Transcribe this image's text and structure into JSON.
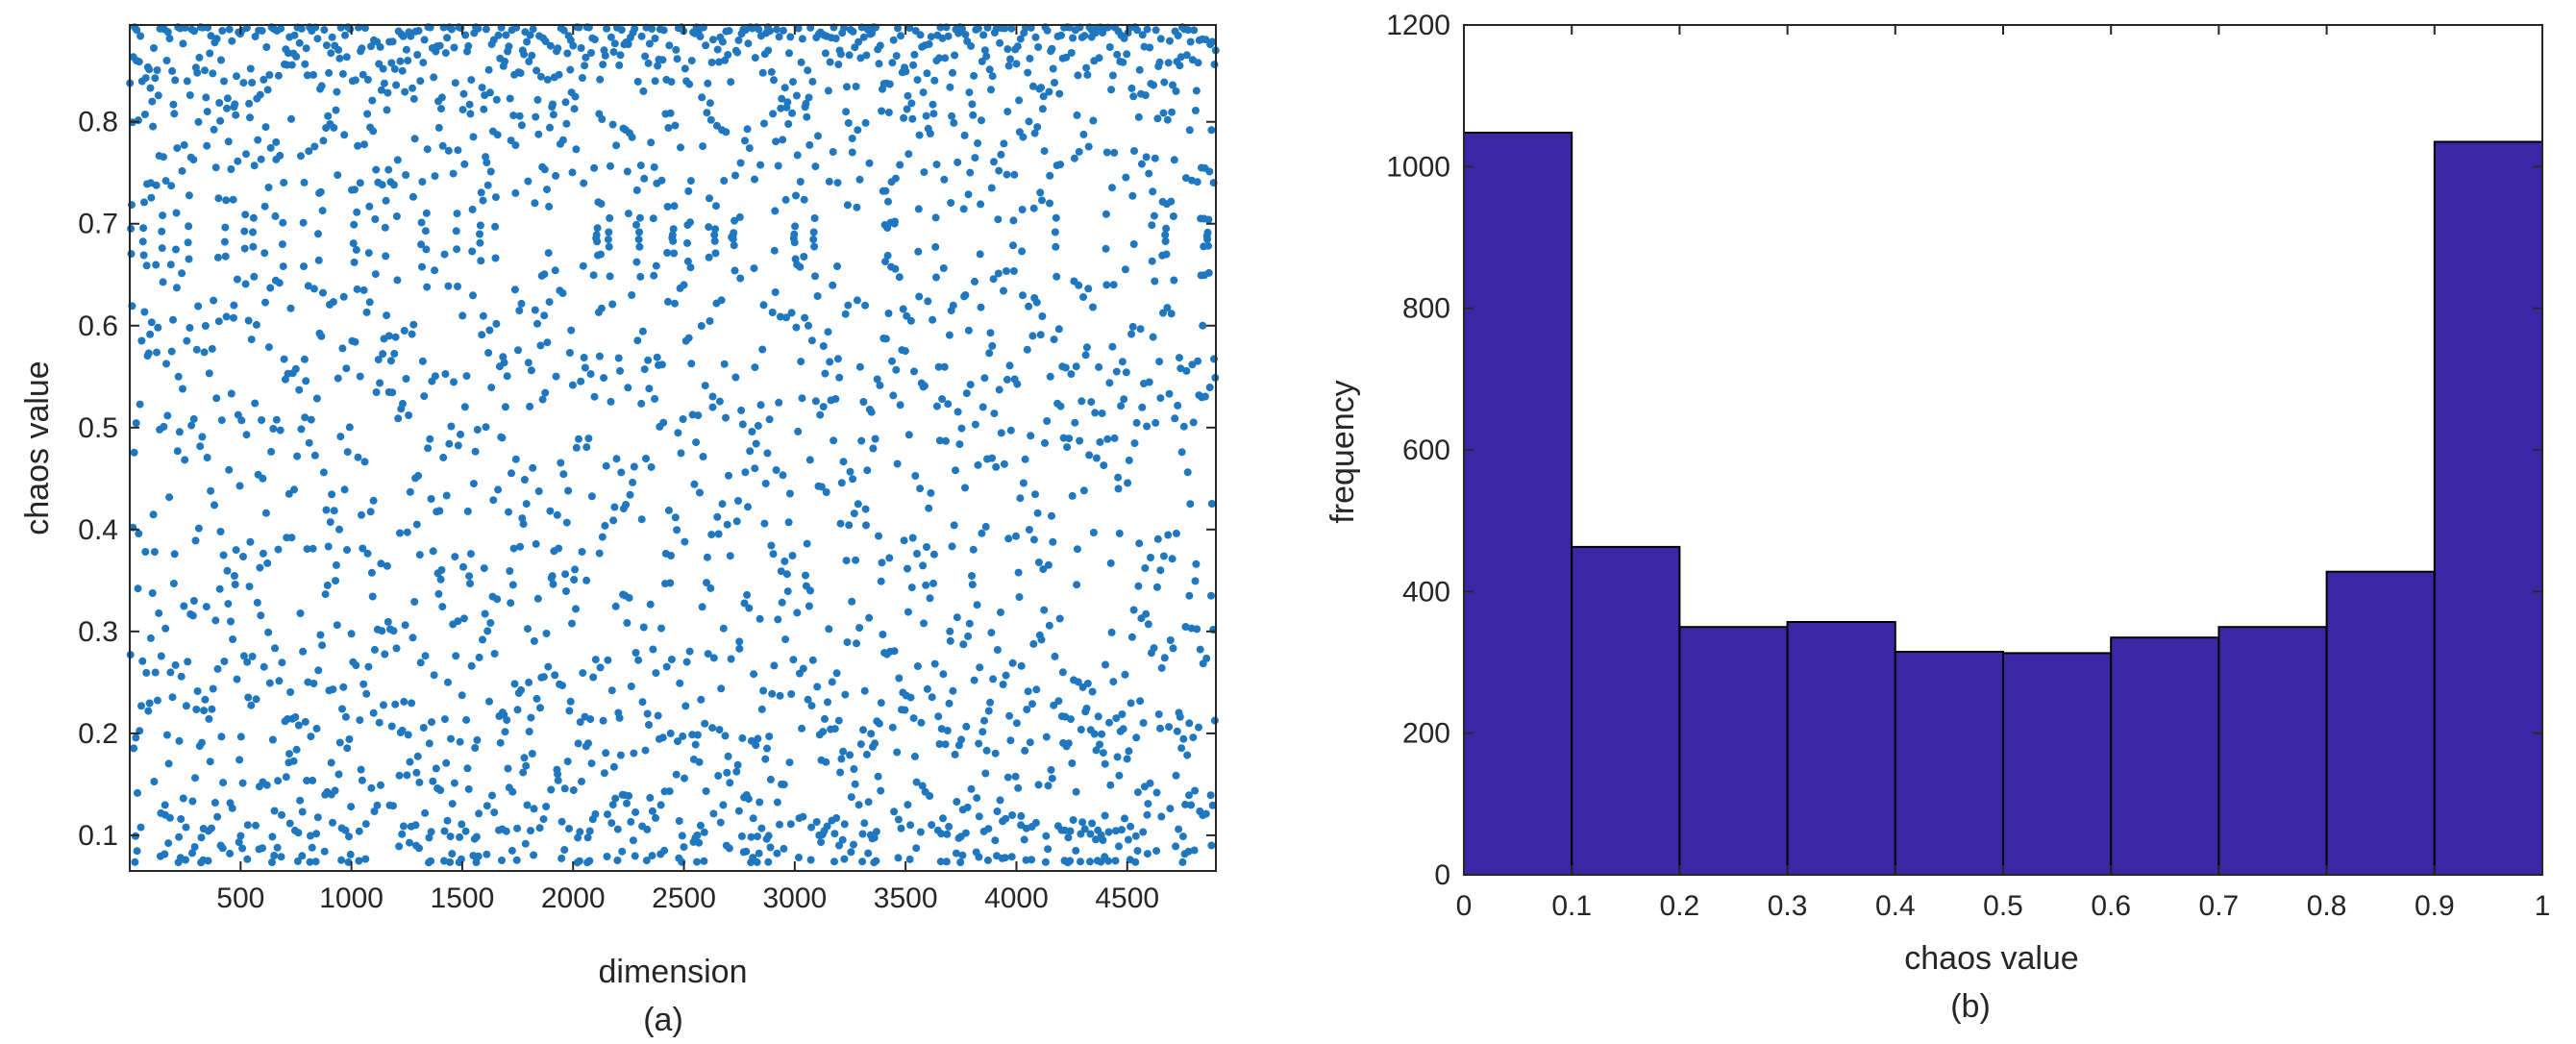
{
  "colors": {
    "scatter_point": "#1f77c0",
    "bar_fill": "#3b26a6",
    "axis": "#262626"
  },
  "chart_data": [
    {
      "type": "scatter",
      "panel_label": "(a)",
      "title": "",
      "xlabel": "dimension",
      "ylabel": "chaos value",
      "xlim": [
        0,
        4900
      ],
      "ylim": [
        0.065,
        0.895
      ],
      "xticks": [
        500,
        1000,
        1500,
        2000,
        2500,
        3000,
        3500,
        4000,
        4500
      ],
      "xtick_labels": [
        "500",
        "1000",
        "1500",
        "2000",
        "2500",
        "3000",
        "3500",
        "4000",
        "4500"
      ],
      "yticks": [
        0.1,
        0.2,
        0.3,
        0.4,
        0.5,
        0.6,
        0.7,
        0.8
      ],
      "ytick_labels": [
        "0.1",
        "0.2",
        "0.3",
        "0.4",
        "0.5",
        "0.6",
        "0.7",
        "0.8"
      ],
      "marker": "filled-dot",
      "points_description_count": 4900,
      "points": [
        [
          30,
          0.86
        ],
        [
          95,
          0.74
        ],
        [
          160,
          0.12
        ],
        [
          220,
          0.55
        ],
        [
          290,
          0.33
        ],
        [
          350,
          0.81
        ],
        [
          410,
          0.09
        ],
        [
          470,
          0.62
        ],
        [
          530,
          0.27
        ],
        [
          600,
          0.45
        ],
        [
          660,
          0.78
        ],
        [
          720,
          0.18
        ],
        [
          790,
          0.51
        ],
        [
          850,
          0.69
        ],
        [
          910,
          0.14
        ],
        [
          980,
          0.38
        ],
        [
          1040,
          0.74
        ],
        [
          1100,
          0.22
        ],
        [
          1170,
          0.59
        ],
        [
          1230,
          0.85
        ],
        [
          1290,
          0.11
        ],
        [
          1360,
          0.43
        ],
        [
          1420,
          0.67
        ],
        [
          1480,
          0.31
        ],
        [
          1550,
          0.08
        ],
        [
          1610,
          0.76
        ],
        [
          1680,
          0.49
        ],
        [
          1740,
          0.73
        ],
        [
          1800,
          0.25
        ],
        [
          1870,
          0.61
        ],
        [
          1930,
          0.16
        ],
        [
          1990,
          0.88
        ],
        [
          2060,
          0.35
        ],
        [
          2120,
          0.57
        ],
        [
          2180,
          0.13
        ],
        [
          2250,
          0.71
        ],
        [
          2310,
          0.41
        ],
        [
          2370,
          0.84
        ],
        [
          2440,
          0.2
        ],
        [
          2500,
          0.64
        ],
        [
          2560,
          0.1
        ],
        [
          2630,
          0.52
        ],
        [
          2690,
          0.79
        ],
        [
          2750,
          0.29
        ],
        [
          2820,
          0.46
        ],
        [
          2880,
          0.87
        ],
        [
          2940,
          0.15
        ],
        [
          3010,
          0.66
        ],
        [
          3070,
          0.34
        ],
        [
          3130,
          0.58
        ],
        [
          3200,
          0.09
        ],
        [
          3260,
          0.77
        ],
        [
          3320,
          0.42
        ],
        [
          3390,
          0.23
        ],
        [
          3450,
          0.7
        ],
        [
          3510,
          0.13
        ],
        [
          3580,
          0.54
        ],
        [
          3640,
          0.86
        ],
        [
          3700,
          0.3
        ],
        [
          3770,
          0.63
        ],
        [
          3830,
          0.19
        ],
        [
          3890,
          0.47
        ],
        [
          3960,
          0.81
        ],
        [
          4020,
          0.11
        ],
        [
          4080,
          0.39
        ],
        [
          4150,
          0.72
        ],
        [
          4210,
          0.26
        ],
        [
          4270,
          0.56
        ],
        [
          4340,
          0.89
        ],
        [
          4400,
          0.17
        ],
        [
          4460,
          0.44
        ],
        [
          4530,
          0.68
        ],
        [
          4590,
          0.12
        ],
        [
          4650,
          0.36
        ],
        [
          4720,
          0.83
        ],
        [
          4780,
          0.21
        ],
        [
          4840,
          0.6
        ],
        [
          4880,
          0.09
        ]
      ]
    },
    {
      "type": "bar",
      "panel_label": "(b)",
      "title": "",
      "xlabel": "chaos value",
      "ylabel": "frequency",
      "xlim": [
        0,
        1
      ],
      "ylim": [
        0,
        1200
      ],
      "xticks": [
        0,
        0.1,
        0.2,
        0.3,
        0.4,
        0.5,
        0.6,
        0.7,
        0.8,
        0.9,
        1
      ],
      "xtick_labels": [
        "0",
        "0.1",
        "0.2",
        "0.3",
        "0.4",
        "0.5",
        "0.6",
        "0.7",
        "0.8",
        "0.9",
        "1"
      ],
      "yticks": [
        0,
        200,
        400,
        600,
        800,
        1000,
        1200
      ],
      "ytick_labels": [
        "0",
        "200",
        "400",
        "600",
        "800",
        "1000",
        "1200"
      ],
      "bin_edges": [
        0,
        0.1,
        0.2,
        0.3,
        0.4,
        0.5,
        0.6,
        0.7,
        0.8,
        0.9,
        1.0
      ],
      "values": [
        1048,
        463,
        350,
        357,
        315,
        313,
        335,
        350,
        428,
        1035
      ]
    }
  ]
}
